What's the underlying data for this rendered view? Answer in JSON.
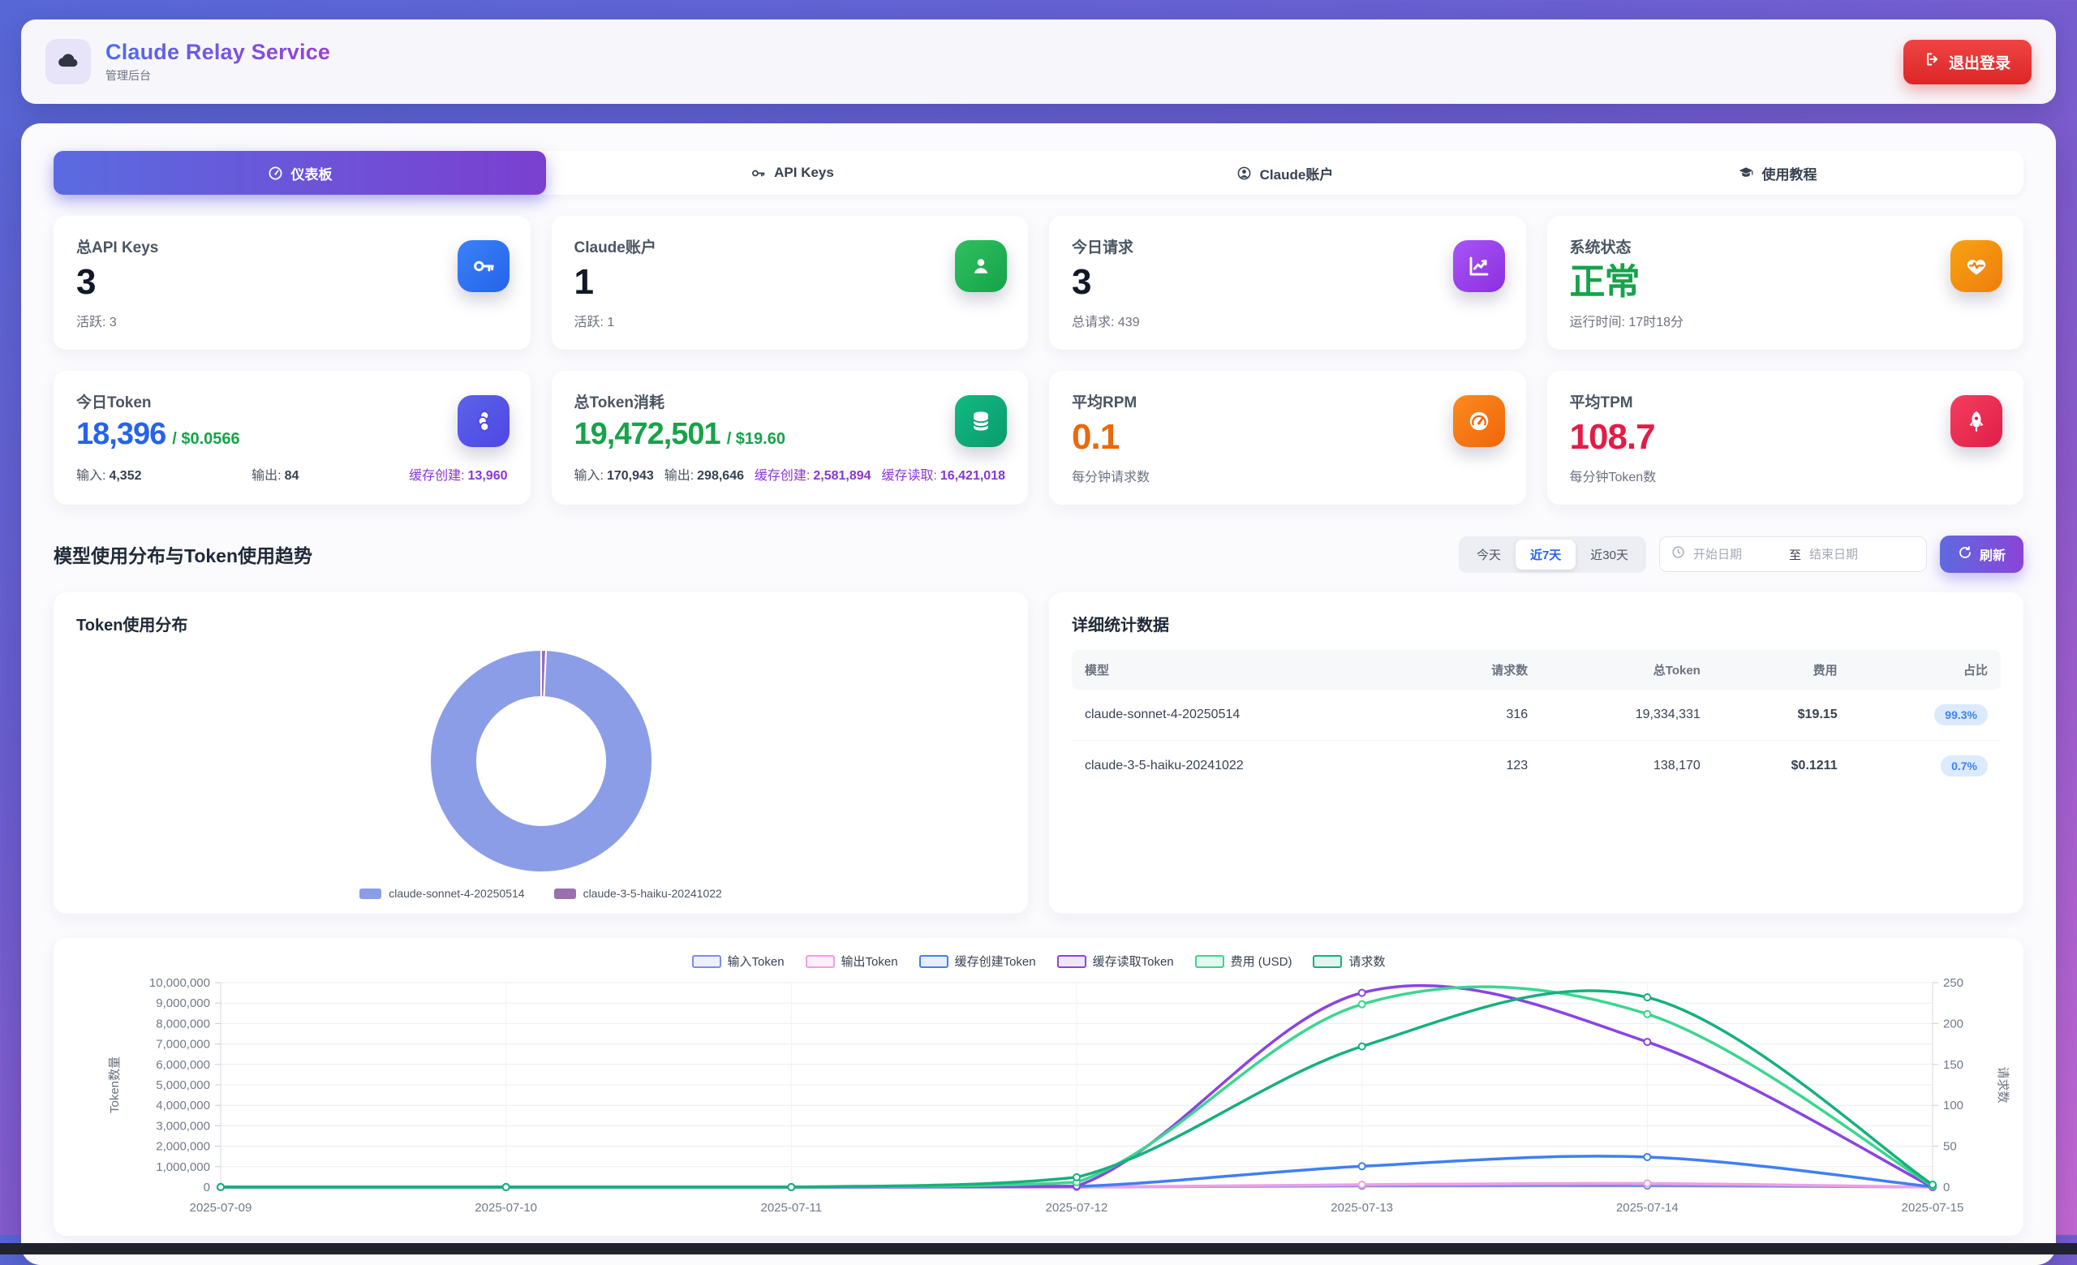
{
  "header": {
    "title": "Claude Relay Service",
    "subtitle": "管理后台",
    "logout_label": "退出登录"
  },
  "tabs": [
    {
      "label": "仪表板",
      "icon": "gauge-icon",
      "active": true
    },
    {
      "label": "API Keys",
      "icon": "key-icon",
      "active": false
    },
    {
      "label": "Claude账户",
      "icon": "user-circle-icon",
      "active": false
    },
    {
      "label": "使用教程",
      "icon": "graduation-cap-icon",
      "active": false
    }
  ],
  "stats": {
    "cards": [
      {
        "title": "总API Keys",
        "value": "3",
        "subtitle": "活跃: 3",
        "value_color": "#111827",
        "icon": "key-icon",
        "icon_gradient": [
          "#3b82f6",
          "#2563eb"
        ]
      },
      {
        "title": "Claude账户",
        "value": "1",
        "subtitle": "活跃: 1",
        "value_color": "#111827",
        "icon": "user-icon",
        "icon_gradient": [
          "#2fbf5f",
          "#16a34a"
        ]
      },
      {
        "title": "今日请求",
        "value": "3",
        "subtitle": "总请求: 439",
        "value_color": "#111827",
        "icon": "chart-line-icon",
        "icon_gradient": [
          "#a855f7",
          "#8b2fe0"
        ]
      },
      {
        "title": "系统状态",
        "value": "正常",
        "subtitle": "运行时间: 17时18分",
        "value_color": "#16a34a",
        "icon": "heart-pulse-icon",
        "icon_gradient": [
          "#f7a313",
          "#ef7d0c"
        ]
      },
      {
        "title": "今日Token",
        "value": "18,396",
        "cost": "/ $0.0566",
        "value_color": "#2563eb",
        "icon": "coins-icon",
        "icon_gradient": [
          "#5a63e8",
          "#4f46e5"
        ],
        "breakdown": [
          {
            "label": "输入:",
            "value": "4,352",
            "highlight": false
          },
          {
            "label": "输出:",
            "value": "84",
            "highlight": false
          },
          {
            "label": "缓存创建:",
            "value": "13,960",
            "highlight": true
          }
        ]
      },
      {
        "title": "总Token消耗",
        "value": "19,472,501",
        "cost": "/ $19.60",
        "value_color": "#16a34a",
        "icon": "database-icon",
        "icon_gradient": [
          "#12b981",
          "#0a9b6d"
        ],
        "breakdown": [
          {
            "label": "输入:",
            "value": "170,943",
            "highlight": false
          },
          {
            "label": "输出:",
            "value": "298,646",
            "highlight": false
          },
          {
            "label": "缓存创建:",
            "value": "2,581,894",
            "highlight": true
          },
          {
            "label": "缓存读取:",
            "value": "16,421,018",
            "highlight": true
          }
        ]
      },
      {
        "title": "平均RPM",
        "value": "0.1",
        "subtitle": "每分钟请求数",
        "value_color": "#ea690c",
        "icon": "tachometer-icon",
        "icon_gradient": [
          "#fb8b1e",
          "#f0650a"
        ]
      },
      {
        "title": "平均TPM",
        "value": "108.7",
        "subtitle": "每分钟Token数",
        "value_color": "#e11d48",
        "icon": "rocket-icon",
        "icon_gradient": [
          "#f43f5e",
          "#e11d48"
        ]
      }
    ]
  },
  "filters": {
    "section_title": "模型使用分布与Token使用趋势",
    "ranges": [
      "今天",
      "近7天",
      "近30天"
    ],
    "active_range": "近7天",
    "date_start_placeholder": "开始日期",
    "date_separator": "至",
    "date_end_placeholder": "结束日期",
    "refresh_label": "刷新"
  },
  "donut_title": "Token使用分布",
  "table": {
    "title": "详细统计数据",
    "headers": [
      "模型",
      "请求数",
      "总Token",
      "费用",
      "占比"
    ],
    "rows": [
      {
        "model": "claude-sonnet-4-20250514",
        "requests": "316",
        "total_tokens": "19,334,331",
        "cost": "$19.15",
        "percent": "99.3%"
      },
      {
        "model": "claude-3-5-haiku-20241022",
        "requests": "123",
        "total_tokens": "138,170",
        "cost": "$0.1211",
        "percent": "0.7%"
      }
    ]
  },
  "chart_data": [
    {
      "type": "pie",
      "title": "Token使用分布",
      "legend_position": "bottom",
      "slices": [
        {
          "label": "claude-sonnet-4-20250514",
          "value": 19334331,
          "percent": 99.3,
          "color": "#8b9de6"
        },
        {
          "label": "claude-3-5-haiku-20241022",
          "value": 138170,
          "percent": 0.7,
          "color": "#9a6fb0"
        }
      ]
    },
    {
      "type": "line",
      "x": [
        "2025-07-09",
        "2025-07-10",
        "2025-07-11",
        "2025-07-12",
        "2025-07-13",
        "2025-07-14",
        "2025-07-15"
      ],
      "series": [
        {
          "name": "输入Token",
          "axis": "left",
          "color": "#7f8be6",
          "legend_fill": "#eef0fd",
          "values": [
            0,
            0,
            0,
            1000,
            60000,
            70000,
            4352
          ]
        },
        {
          "name": "输出Token",
          "axis": "left",
          "color": "#ef9fe4",
          "legend_fill": "#fdeffb",
          "values": [
            0,
            0,
            0,
            2000,
            120000,
            180000,
            84
          ]
        },
        {
          "name": "缓存创建Token",
          "axis": "left",
          "color": "#3f7ff2",
          "legend_fill": "#e7effe",
          "values": [
            0,
            0,
            0,
            30000,
            1020000,
            1470000,
            13960
          ]
        },
        {
          "name": "缓存读取Token",
          "axis": "left",
          "color": "#8b44e0",
          "legend_fill": "#f1e7fb",
          "values": [
            0,
            0,
            0,
            50000,
            9500000,
            7100000,
            0
          ]
        },
        {
          "name": "费用 (USD)",
          "axis": "cost",
          "color": "#3bd68f",
          "legend_fill": "#e4f9f0",
          "values": [
            0,
            0,
            0,
            0.25,
            9.3,
            8.8,
            0.057
          ]
        },
        {
          "name": "请求数",
          "axis": "right",
          "color": "#17b07c",
          "legend_fill": "#e2f6ef",
          "values": [
            0,
            0,
            0,
            12,
            172,
            232,
            3
          ]
        }
      ],
      "left_axis": {
        "label": "Token数量",
        "min": 0,
        "max": 10000000,
        "tick_step": 1000000
      },
      "right_axis": {
        "label": "请求数",
        "min": 0,
        "max": 250,
        "tick_step": 50
      },
      "cost_axis_max": 10.4,
      "grid": true,
      "legend_position": "top"
    }
  ]
}
